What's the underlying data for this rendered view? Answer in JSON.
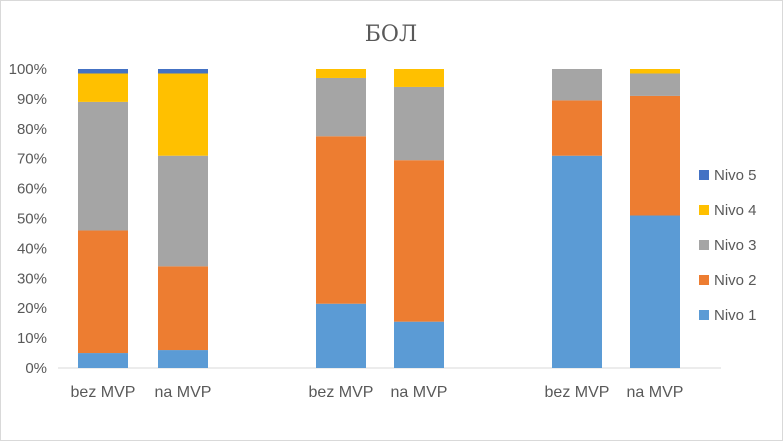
{
  "chart_data": {
    "type": "bar",
    "stacked": true,
    "title": "БОЛ",
    "xlabel": "",
    "ylabel": "",
    "ylim": [
      0,
      100
    ],
    "yticks": [
      "0%",
      "10%",
      "20%",
      "30%",
      "40%",
      "50%",
      "60%",
      "70%",
      "80%",
      "90%",
      "100%"
    ],
    "grid": false,
    "legend_position": "right",
    "categories": [
      "bez MVP",
      "na MVP",
      "bez MVP",
      "na MVP",
      "bez MVP",
      "na MVP"
    ],
    "groups": [
      [
        0,
        1
      ],
      [
        2,
        3
      ],
      [
        4,
        5
      ]
    ],
    "series": [
      {
        "name": "Nivo 1",
        "color": "#5b9bd5",
        "values": [
          5,
          6,
          21.5,
          15.5,
          71,
          51
        ]
      },
      {
        "name": "Nivo 2",
        "color": "#ed7d31",
        "values": [
          41,
          28,
          56,
          54,
          18.5,
          40
        ]
      },
      {
        "name": "Nivo 3",
        "color": "#a5a5a5",
        "values": [
          43,
          37,
          19.5,
          24.5,
          10.5,
          7.5
        ]
      },
      {
        "name": "Nivo 4",
        "color": "#ffc000",
        "values": [
          9.5,
          27.5,
          3,
          6,
          0,
          1.5
        ]
      },
      {
        "name": "Nivo 5",
        "color": "#4472c4",
        "values": [
          1.5,
          1.5,
          0,
          0,
          0,
          0
        ]
      }
    ]
  }
}
